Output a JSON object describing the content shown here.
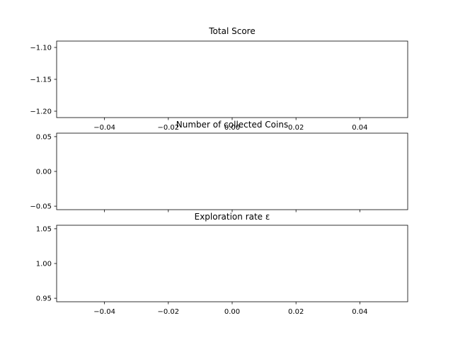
{
  "chart_data": [
    {
      "type": "line",
      "title": "Total Score",
      "xlabel": "",
      "ylabel": "",
      "series": [],
      "xlim": [
        -0.055,
        0.055
      ],
      "ylim": [
        -1.21,
        -1.09
      ],
      "x_ticks": [
        "−0.04",
        "−0.02",
        "0.00",
        "0.02",
        "0.04"
      ],
      "x_tick_values": [
        -0.04,
        -0.02,
        0.0,
        0.02,
        0.04
      ],
      "y_ticks": [
        "−1.10",
        "−1.15",
        "−1.20"
      ],
      "y_tick_values": [
        -1.1,
        -1.15,
        -1.2
      ],
      "show_x_tick_labels": true,
      "grid": false,
      "legend": "none"
    },
    {
      "type": "line",
      "title": "Number of collected Coins",
      "xlabel": "",
      "ylabel": "",
      "series": [],
      "xlim": [
        -0.055,
        0.055
      ],
      "ylim": [
        -0.055,
        0.055
      ],
      "x_ticks": [],
      "x_tick_values": [
        -0.04,
        -0.02,
        0.0,
        0.02,
        0.04
      ],
      "y_ticks": [
        "0.05",
        "0.00",
        "−0.05"
      ],
      "y_tick_values": [
        0.05,
        0.0,
        -0.05
      ],
      "show_x_tick_labels": false,
      "grid": false,
      "legend": "none"
    },
    {
      "type": "line",
      "title": "Exploration rate ε",
      "xlabel": "",
      "ylabel": "",
      "series": [],
      "xlim": [
        -0.055,
        0.055
      ],
      "ylim": [
        0.945,
        1.055
      ],
      "x_ticks": [
        "−0.04",
        "−0.02",
        "0.00",
        "0.02",
        "0.04"
      ],
      "x_tick_values": [
        -0.04,
        -0.02,
        0.0,
        0.02,
        0.04
      ],
      "y_ticks": [
        "1.05",
        "1.00",
        "0.95"
      ],
      "y_tick_values": [
        1.05,
        1.0,
        0.95
      ],
      "show_x_tick_labels": true,
      "grid": false,
      "legend": "none"
    }
  ]
}
